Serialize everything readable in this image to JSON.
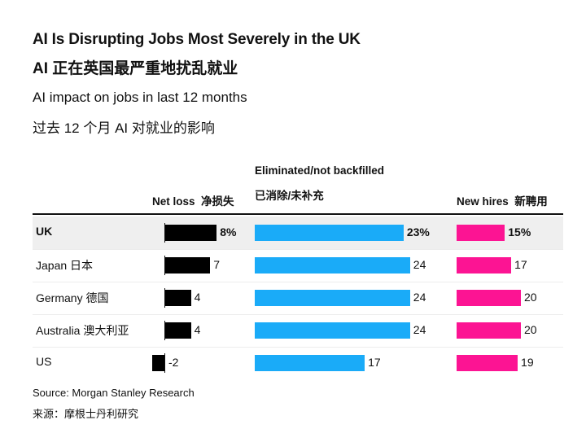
{
  "header": {
    "title": "AI Is Disrupting Jobs Most Severely in the UK",
    "title_cn": "AI 正在英国最严重地扰乱就业",
    "subtitle": "AI impact on jobs in last 12 months",
    "subtitle_cn": "过去 12 个月 AI 对就业的影响"
  },
  "footer": {
    "source": "Source: Morgan Stanley Research",
    "source_cn": "来源：摩根士丹利研究"
  },
  "colors": {
    "net_loss": "#000000",
    "eliminated": "#1aabf8",
    "new_hires": "#fc1493",
    "highlight_row": "#efefef"
  },
  "chart_data": {
    "type": "bar",
    "title": "AI Is Disrupting Jobs Most Severely in the UK",
    "subtitle": "AI impact on jobs in last 12 months",
    "unit": "%",
    "categories": [
      "UK",
      "Japan",
      "Germany",
      "Australia",
      "US"
    ],
    "category_labels": [
      "UK",
      "Japan  日本",
      "Germany  德国",
      "Australia  澳大利亚",
      "US"
    ],
    "highlight_category": "UK",
    "series": [
      {
        "name": "Net loss",
        "header_en": "Net loss",
        "header_cn": "净损失",
        "color": "#000000",
        "values": [
          8,
          7,
          4,
          4,
          -2
        ],
        "labels": [
          "8%",
          "7",
          "4",
          "4",
          "-2"
        ]
      },
      {
        "name": "Eliminated/not backfilled",
        "header_en": "Eliminated/not backfilled",
        "header_cn": "已消除/未补充",
        "color": "#1aabf8",
        "values": [
          23,
          24,
          24,
          24,
          17
        ],
        "labels": [
          "23%",
          "24",
          "24",
          "24",
          "17"
        ]
      },
      {
        "name": "New hires",
        "header_en": "New hires",
        "header_cn": "新聘用",
        "color": "#fc1493",
        "values": [
          15,
          17,
          20,
          20,
          19
        ],
        "labels": [
          "15%",
          "17",
          "20",
          "20",
          "19"
        ]
      }
    ],
    "source": "Source: Morgan Stanley Research"
  }
}
